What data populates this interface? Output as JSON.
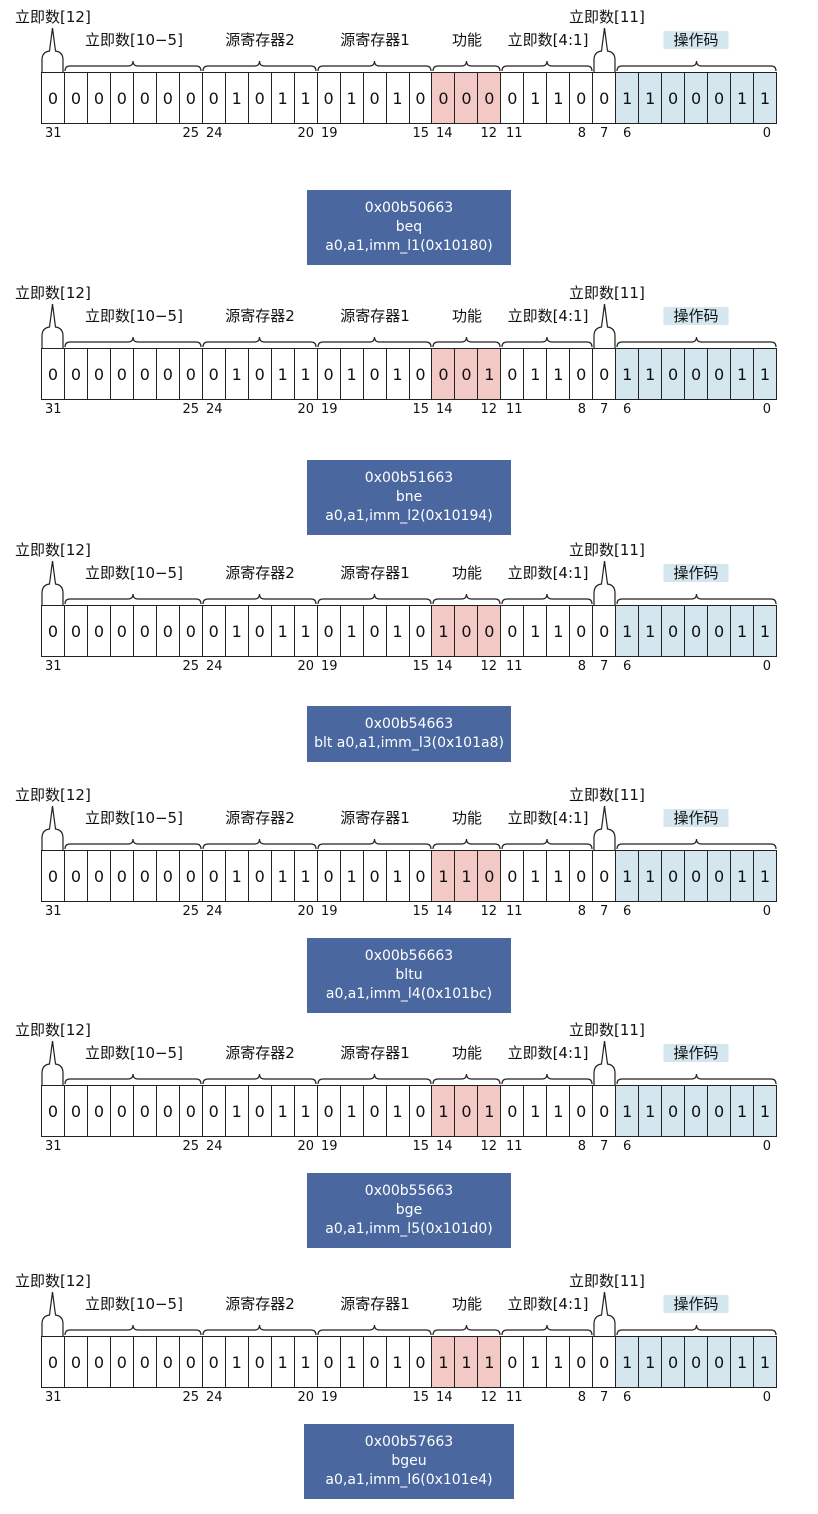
{
  "field_labels": {
    "imm12": "立即数[12]",
    "imm10_5": "立即数[10−5]",
    "rs2": "源寄存器2",
    "rs1": "源寄存器1",
    "funct3": "功能",
    "imm4_1": "立即数[4:1]",
    "imm11": "立即数[11]",
    "opcode": "操作码"
  },
  "bit_indices": [
    "31",
    "25",
    "24",
    "20",
    "19",
    "15",
    "14",
    "12",
    "11",
    "8",
    "7",
    "6",
    "0"
  ],
  "instructions": [
    {
      "bits": [
        "0",
        "0",
        "0",
        "0",
        "0",
        "0",
        "0",
        "0",
        "1",
        "0",
        "1",
        "1",
        "0",
        "1",
        "0",
        "1",
        "0",
        "0",
        "0",
        "0",
        "0",
        "1",
        "1",
        "0",
        "0",
        "1",
        "1",
        "0",
        "0",
        "0",
        "1",
        "1"
      ],
      "hex": "0x00b50663",
      "asm": "beq a0,a1,imm_l1(0x10180)"
    },
    {
      "bits": [
        "0",
        "0",
        "0",
        "0",
        "0",
        "0",
        "0",
        "0",
        "1",
        "0",
        "1",
        "1",
        "0",
        "1",
        "0",
        "1",
        "0",
        "0",
        "0",
        "1",
        "0",
        "1",
        "1",
        "0",
        "0",
        "1",
        "1",
        "0",
        "0",
        "0",
        "1",
        "1"
      ],
      "hex": "0x00b51663",
      "asm": "bne a0,a1,imm_l2(0x10194)"
    },
    {
      "bits": [
        "0",
        "0",
        "0",
        "0",
        "0",
        "0",
        "0",
        "0",
        "1",
        "0",
        "1",
        "1",
        "0",
        "1",
        "0",
        "1",
        "0",
        "1",
        "0",
        "0",
        "0",
        "1",
        "1",
        "0",
        "0",
        "1",
        "1",
        "0",
        "0",
        "0",
        "1",
        "1"
      ],
      "hex": "0x00b54663",
      "asm": "blt a0,a1,imm_l3(0x101a8)"
    },
    {
      "bits": [
        "0",
        "0",
        "0",
        "0",
        "0",
        "0",
        "0",
        "0",
        "1",
        "0",
        "1",
        "1",
        "0",
        "1",
        "0",
        "1",
        "0",
        "1",
        "1",
        "0",
        "0",
        "1",
        "1",
        "0",
        "0",
        "1",
        "1",
        "0",
        "0",
        "0",
        "1",
        "1"
      ],
      "hex": "0x00b56663",
      "asm": "bltu a0,a1,imm_l4(0x101bc)"
    },
    {
      "bits": [
        "0",
        "0",
        "0",
        "0",
        "0",
        "0",
        "0",
        "0",
        "1",
        "0",
        "1",
        "1",
        "0",
        "1",
        "0",
        "1",
        "0",
        "1",
        "0",
        "1",
        "0",
        "1",
        "1",
        "0",
        "0",
        "1",
        "1",
        "0",
        "0",
        "0",
        "1",
        "1"
      ],
      "hex": "0x00b55663",
      "asm": "bge a0,a1,imm_l5(0x101d0)"
    },
    {
      "bits": [
        "0",
        "0",
        "0",
        "0",
        "0",
        "0",
        "0",
        "0",
        "1",
        "0",
        "1",
        "1",
        "0",
        "1",
        "0",
        "1",
        "0",
        "1",
        "1",
        "1",
        "0",
        "1",
        "1",
        "0",
        "0",
        "1",
        "1",
        "0",
        "0",
        "0",
        "1",
        "1"
      ],
      "hex": "0x00b57663",
      "asm": "bgeu a0,a1,imm_l6(0x101e4)"
    }
  ],
  "colors": {
    "funct3": "#f3c9c6",
    "opcode": "#d4e6ee",
    "instruction_box": "#4a67a0"
  }
}
